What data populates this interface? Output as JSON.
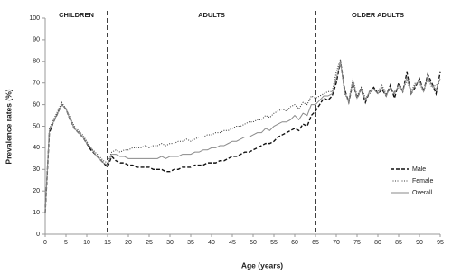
{
  "chart_data": {
    "type": "line",
    "x_label": "Age (years)",
    "y_label": "Prevalence rates (%)",
    "x": [
      0,
      1,
      2,
      3,
      4,
      5,
      6,
      7,
      8,
      9,
      10,
      11,
      12,
      13,
      14,
      15,
      16,
      17,
      18,
      19,
      20,
      21,
      22,
      23,
      24,
      25,
      26,
      27,
      28,
      29,
      30,
      31,
      32,
      33,
      34,
      35,
      36,
      37,
      38,
      39,
      40,
      41,
      42,
      43,
      44,
      45,
      46,
      47,
      48,
      49,
      50,
      51,
      52,
      53,
      54,
      55,
      56,
      57,
      58,
      59,
      60,
      61,
      62,
      63,
      64,
      65,
      66,
      67,
      68,
      69,
      70,
      71,
      72,
      73,
      74,
      75,
      76,
      77,
      78,
      79,
      80,
      81,
      82,
      83,
      84,
      85,
      86,
      87,
      88,
      89,
      90,
      91,
      92,
      93,
      94,
      95
    ],
    "series": [
      {
        "name": "Male",
        "color": "#111111",
        "style": "dashed",
        "values": [
          10,
          47,
          52,
          56,
          60,
          58,
          53,
          49,
          47,
          45,
          42,
          39,
          37,
          35,
          33,
          31,
          36,
          34,
          33,
          33,
          32,
          32,
          31,
          31,
          31,
          31,
          30,
          30,
          30,
          29,
          29,
          30,
          30,
          31,
          31,
          31,
          32,
          32,
          32,
          33,
          33,
          33,
          34,
          34,
          35,
          36,
          36,
          37,
          38,
          38,
          39,
          40,
          41,
          42,
          42,
          43,
          45,
          46,
          47,
          48,
          49,
          48,
          51,
          50,
          55,
          57,
          60,
          63,
          62,
          64,
          70,
          80,
          67,
          61,
          70,
          63,
          67,
          61,
          66,
          68,
          65,
          67,
          64,
          69,
          63,
          70,
          66,
          75,
          65,
          68,
          72,
          66,
          74,
          70,
          65,
          75
        ]
      },
      {
        "name": "Female",
        "color": "#333333",
        "style": "dotted",
        "values": [
          11,
          49,
          53,
          57,
          61,
          58,
          54,
          50,
          48,
          46,
          43,
          40,
          38,
          36,
          34,
          33,
          38,
          39,
          38,
          39,
          39,
          40,
          40,
          40,
          41,
          40,
          41,
          41,
          42,
          41,
          42,
          42,
          43,
          43,
          44,
          43,
          44,
          45,
          45,
          46,
          46,
          47,
          47,
          48,
          48,
          49,
          50,
          50,
          51,
          52,
          52,
          53,
          53,
          55,
          54,
          56,
          57,
          58,
          57,
          59,
          60,
          58,
          61,
          60,
          64,
          63,
          64,
          65,
          66,
          66,
          75,
          81,
          65,
          62,
          72,
          64,
          68,
          63,
          65,
          67,
          66,
          69,
          65,
          67,
          66,
          68,
          67,
          71,
          66,
          70,
          70,
          66,
          72,
          68,
          69,
          70
        ]
      },
      {
        "name": "Overall",
        "color": "#8a8a8a",
        "style": "solid",
        "values": [
          10,
          48,
          52,
          56,
          60,
          58,
          53,
          49,
          47,
          45,
          42,
          40,
          37,
          35,
          33,
          32,
          37,
          37,
          36,
          36,
          35,
          35,
          35,
          35,
          35,
          35,
          35,
          35,
          36,
          35,
          36,
          36,
          36,
          37,
          37,
          37,
          38,
          38,
          39,
          39,
          40,
          40,
          41,
          41,
          42,
          43,
          43,
          44,
          45,
          45,
          46,
          47,
          47,
          49,
          48,
          50,
          51,
          52,
          52,
          53,
          55,
          53,
          56,
          55,
          60,
          60,
          62,
          64,
          64,
          65,
          72,
          80,
          66,
          61,
          71,
          63,
          67,
          62,
          66,
          67,
          65,
          68,
          64,
          68,
          65,
          69,
          66,
          73,
          65,
          69,
          71,
          66,
          73,
          69,
          67,
          72
        ]
      }
    ],
    "period_boundaries": [
      15,
      65
    ],
    "annotations": [
      "CHILDREN",
      "ADULTS",
      "OLDER ADULTS"
    ],
    "xlim": [
      0,
      95
    ],
    "xticks": [
      0,
      5,
      10,
      15,
      20,
      25,
      30,
      35,
      40,
      45,
      50,
      55,
      60,
      65,
      70,
      75,
      80,
      85,
      90,
      95
    ],
    "ylim": [
      0,
      100
    ],
    "yticks": [
      0,
      10,
      20,
      30,
      40,
      50,
      60,
      70,
      80,
      90,
      100
    ],
    "grid": false,
    "legend": "right"
  }
}
